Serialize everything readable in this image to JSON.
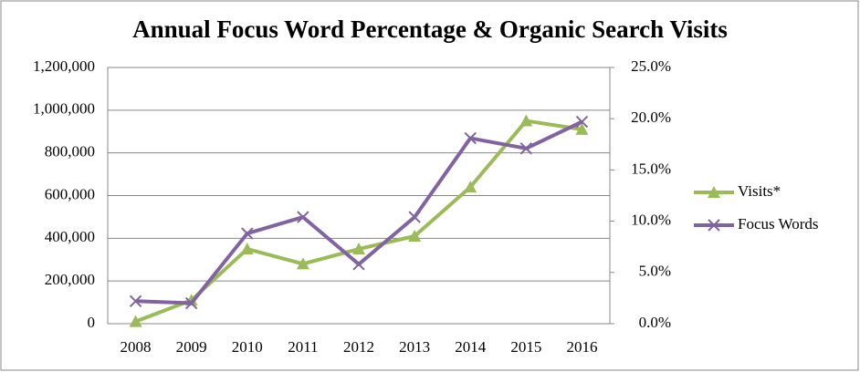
{
  "chart_data": {
    "type": "line",
    "title": "Annual Focus Word Percentage & Organic Search Visits",
    "categories": [
      "2008",
      "2009",
      "2010",
      "2011",
      "2012",
      "2013",
      "2014",
      "2015",
      "2016"
    ],
    "series": [
      {
        "name": "Visits*",
        "color": "#9bbb59",
        "marker": "triangle",
        "values": [
          10000,
          110000,
          350000,
          280000,
          350000,
          410000,
          640000,
          950000,
          910000
        ]
      },
      {
        "name": "Focus Words",
        "color": "#8064a2",
        "marker": "x",
        "axis": "y2",
        "values": [
          2.2,
          2.0,
          8.8,
          10.4,
          5.8,
          10.4,
          18.1,
          17.1,
          19.7
        ]
      }
    ],
    "ylim": [
      0,
      1200000
    ],
    "yticks": [
      0,
      {
        "value": 200000,
        "label": "200,000"
      },
      {
        "value": 400000,
        "label": "400,000"
      },
      {
        "value": 600000,
        "label": "600,000"
      },
      {
        "value": 800000,
        "label": "800,000"
      },
      {
        "value": 1000000,
        "label": "1,000,000"
      },
      {
        "value": 1200000,
        "label": "1,200,000"
      }
    ],
    "y2lim": [
      0,
      25
    ],
    "y2ticks": [
      {
        "value": 0,
        "label": "0.0%"
      },
      {
        "value": 5,
        "label": "5.0%"
      },
      {
        "value": 10,
        "label": "10.0%"
      },
      {
        "value": 15,
        "label": "15.0%"
      },
      {
        "value": 20,
        "label": "20.0%"
      },
      {
        "value": 25,
        "label": "25.0%"
      }
    ],
    "grid": true,
    "legend": "right"
  }
}
